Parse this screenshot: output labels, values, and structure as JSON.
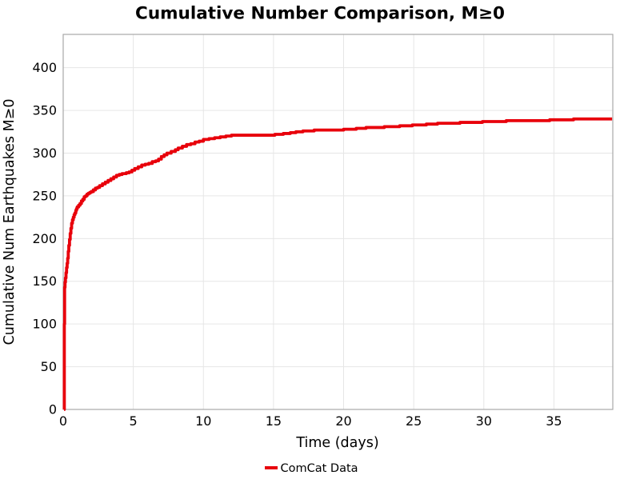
{
  "chart_data": {
    "type": "line",
    "step": true,
    "title": "Cumulative Number Comparison, M≥0",
    "xlabel": "Time (days)",
    "ylabel": "Cumulative Num Earthquakes M≥0",
    "xlim": [
      0,
      39.2
    ],
    "ylim": [
      0,
      439
    ],
    "xticks": [
      0,
      5,
      10,
      15,
      20,
      25,
      30,
      35
    ],
    "yticks": [
      0,
      50,
      100,
      150,
      200,
      250,
      300,
      350,
      400
    ],
    "grid": true,
    "grid_color": "#e6e6e6",
    "spine_color": "#a8a8a8",
    "background_color": "#ffffff",
    "legend": {
      "position": "bottom-center",
      "frame": false,
      "entries": [
        {
          "label": "ComCat Data",
          "color": "#e8000b"
        }
      ]
    },
    "series": [
      {
        "name": "ComCat Data",
        "color": "#e8000b",
        "line_width": 3.8,
        "points": [
          [
            0.06,
            0
          ],
          [
            0.08,
            100
          ],
          [
            0.1,
            143
          ],
          [
            0.13,
            149
          ],
          [
            0.16,
            154
          ],
          [
            0.2,
            160
          ],
          [
            0.24,
            166
          ],
          [
            0.28,
            171
          ],
          [
            0.32,
            177
          ],
          [
            0.36,
            185
          ],
          [
            0.4,
            192
          ],
          [
            0.45,
            199
          ],
          [
            0.5,
            206
          ],
          [
            0.55,
            212
          ],
          [
            0.6,
            218
          ],
          [
            0.66,
            222
          ],
          [
            0.72,
            225
          ],
          [
            0.78,
            228
          ],
          [
            0.84,
            230
          ],
          [
            0.9,
            233
          ],
          [
            0.95,
            235
          ],
          [
            1.0,
            237
          ],
          [
            1.1,
            239
          ],
          [
            1.2,
            241
          ],
          [
            1.3,
            244
          ],
          [
            1.4,
            246
          ],
          [
            1.5,
            249
          ],
          [
            1.6,
            250
          ],
          [
            1.7,
            252
          ],
          [
            1.8,
            253
          ],
          [
            1.9,
            254
          ],
          [
            2.0,
            255
          ],
          [
            2.15,
            257
          ],
          [
            2.3,
            259
          ],
          [
            2.45,
            260
          ],
          [
            2.6,
            262
          ],
          [
            2.8,
            264
          ],
          [
            3.0,
            266
          ],
          [
            3.2,
            268
          ],
          [
            3.4,
            270
          ],
          [
            3.6,
            272
          ],
          [
            3.8,
            274
          ],
          [
            4.0,
            275
          ],
          [
            4.2,
            276
          ],
          [
            4.5,
            277
          ],
          [
            4.7,
            278
          ],
          [
            4.9,
            280
          ],
          [
            5.1,
            282
          ],
          [
            5.35,
            284
          ],
          [
            5.6,
            286
          ],
          [
            5.85,
            287
          ],
          [
            6.1,
            288
          ],
          [
            6.35,
            290
          ],
          [
            6.6,
            291
          ],
          [
            6.8,
            293
          ],
          [
            7.0,
            296
          ],
          [
            7.2,
            298
          ],
          [
            7.4,
            300
          ],
          [
            7.7,
            302
          ],
          [
            8.0,
            304
          ],
          [
            8.2,
            306
          ],
          [
            8.5,
            308
          ],
          [
            8.8,
            310
          ],
          [
            9.1,
            311
          ],
          [
            9.4,
            313
          ],
          [
            9.7,
            314
          ],
          [
            10.0,
            316
          ],
          [
            10.4,
            317
          ],
          [
            10.8,
            318
          ],
          [
            11.2,
            319
          ],
          [
            11.6,
            320
          ],
          [
            12.0,
            321
          ],
          [
            15.1,
            322
          ],
          [
            15.7,
            323
          ],
          [
            16.2,
            324
          ],
          [
            16.6,
            325
          ],
          [
            17.1,
            326
          ],
          [
            17.9,
            327
          ],
          [
            20.0,
            328
          ],
          [
            20.9,
            329
          ],
          [
            21.6,
            330
          ],
          [
            22.9,
            331
          ],
          [
            24.0,
            332
          ],
          [
            24.9,
            333
          ],
          [
            25.9,
            334
          ],
          [
            26.7,
            335
          ],
          [
            28.3,
            336
          ],
          [
            29.9,
            337
          ],
          [
            31.6,
            338
          ],
          [
            34.7,
            339
          ],
          [
            36.4,
            340
          ],
          [
            39.15,
            340
          ]
        ]
      }
    ]
  }
}
